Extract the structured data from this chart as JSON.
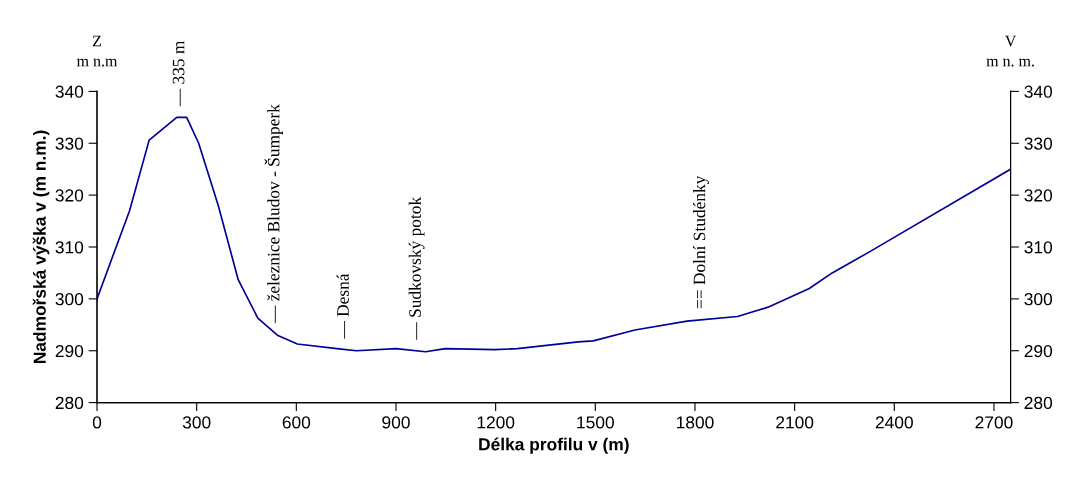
{
  "chart_data": {
    "type": "line",
    "xlabel": "Délka profilu v (m)",
    "ylabel": "Nadmořská výška v (m n.m.)",
    "xlim": [
      0,
      2750
    ],
    "xticks": [
      0,
      300,
      600,
      900,
      1200,
      1500,
      1800,
      2100,
      2400,
      2700
    ],
    "ylim": [
      280,
      340
    ],
    "yticks": [
      280,
      290,
      300,
      310,
      320,
      330,
      340
    ],
    "y2lim": [
      280,
      340
    ],
    "y2ticks": [
      280,
      290,
      300,
      310,
      320,
      330,
      340
    ],
    "grid": false,
    "legend": false,
    "marker": "none",
    "line_style": "solid",
    "series": [
      {
        "color": "#000099",
        "x": [
          0,
          98,
          157,
          240,
          270,
          306,
          365,
          425,
          484,
          543,
          603,
          722,
          781,
          900,
          989,
          1048,
          1197,
          1265,
          1449,
          1494,
          1619,
          1776,
          1928,
          2020,
          2144,
          2213,
          2329,
          2750
        ],
        "values": [
          300,
          317,
          330.6,
          335,
          335,
          330,
          318,
          303.7,
          296.3,
          293,
          291.3,
          290.4,
          290,
          290.4,
          289.8,
          290.4,
          290.2,
          290.4,
          291.7,
          291.9,
          294,
          295.7,
          296.6,
          298.4,
          302,
          305,
          309.2,
          325
        ]
      }
    ],
    "annotations": [
      "Z\nm n.m",
      "V\nm n. m.",
      {
        "text": "— 335 m",
        "x": 250,
        "y": 335
      },
      {
        "text": "— železnice Bludov - Šumperk",
        "x": 532,
        "y": 293.2
      },
      {
        "text": "— Desná",
        "x": 745,
        "y": 290.2
      },
      {
        "text": "— Sudkovský potok",
        "x": 962,
        "y": 290
      },
      {
        "text": "== Dolní Studénky",
        "x": 1818,
        "y": 295.9
      }
    ]
  }
}
